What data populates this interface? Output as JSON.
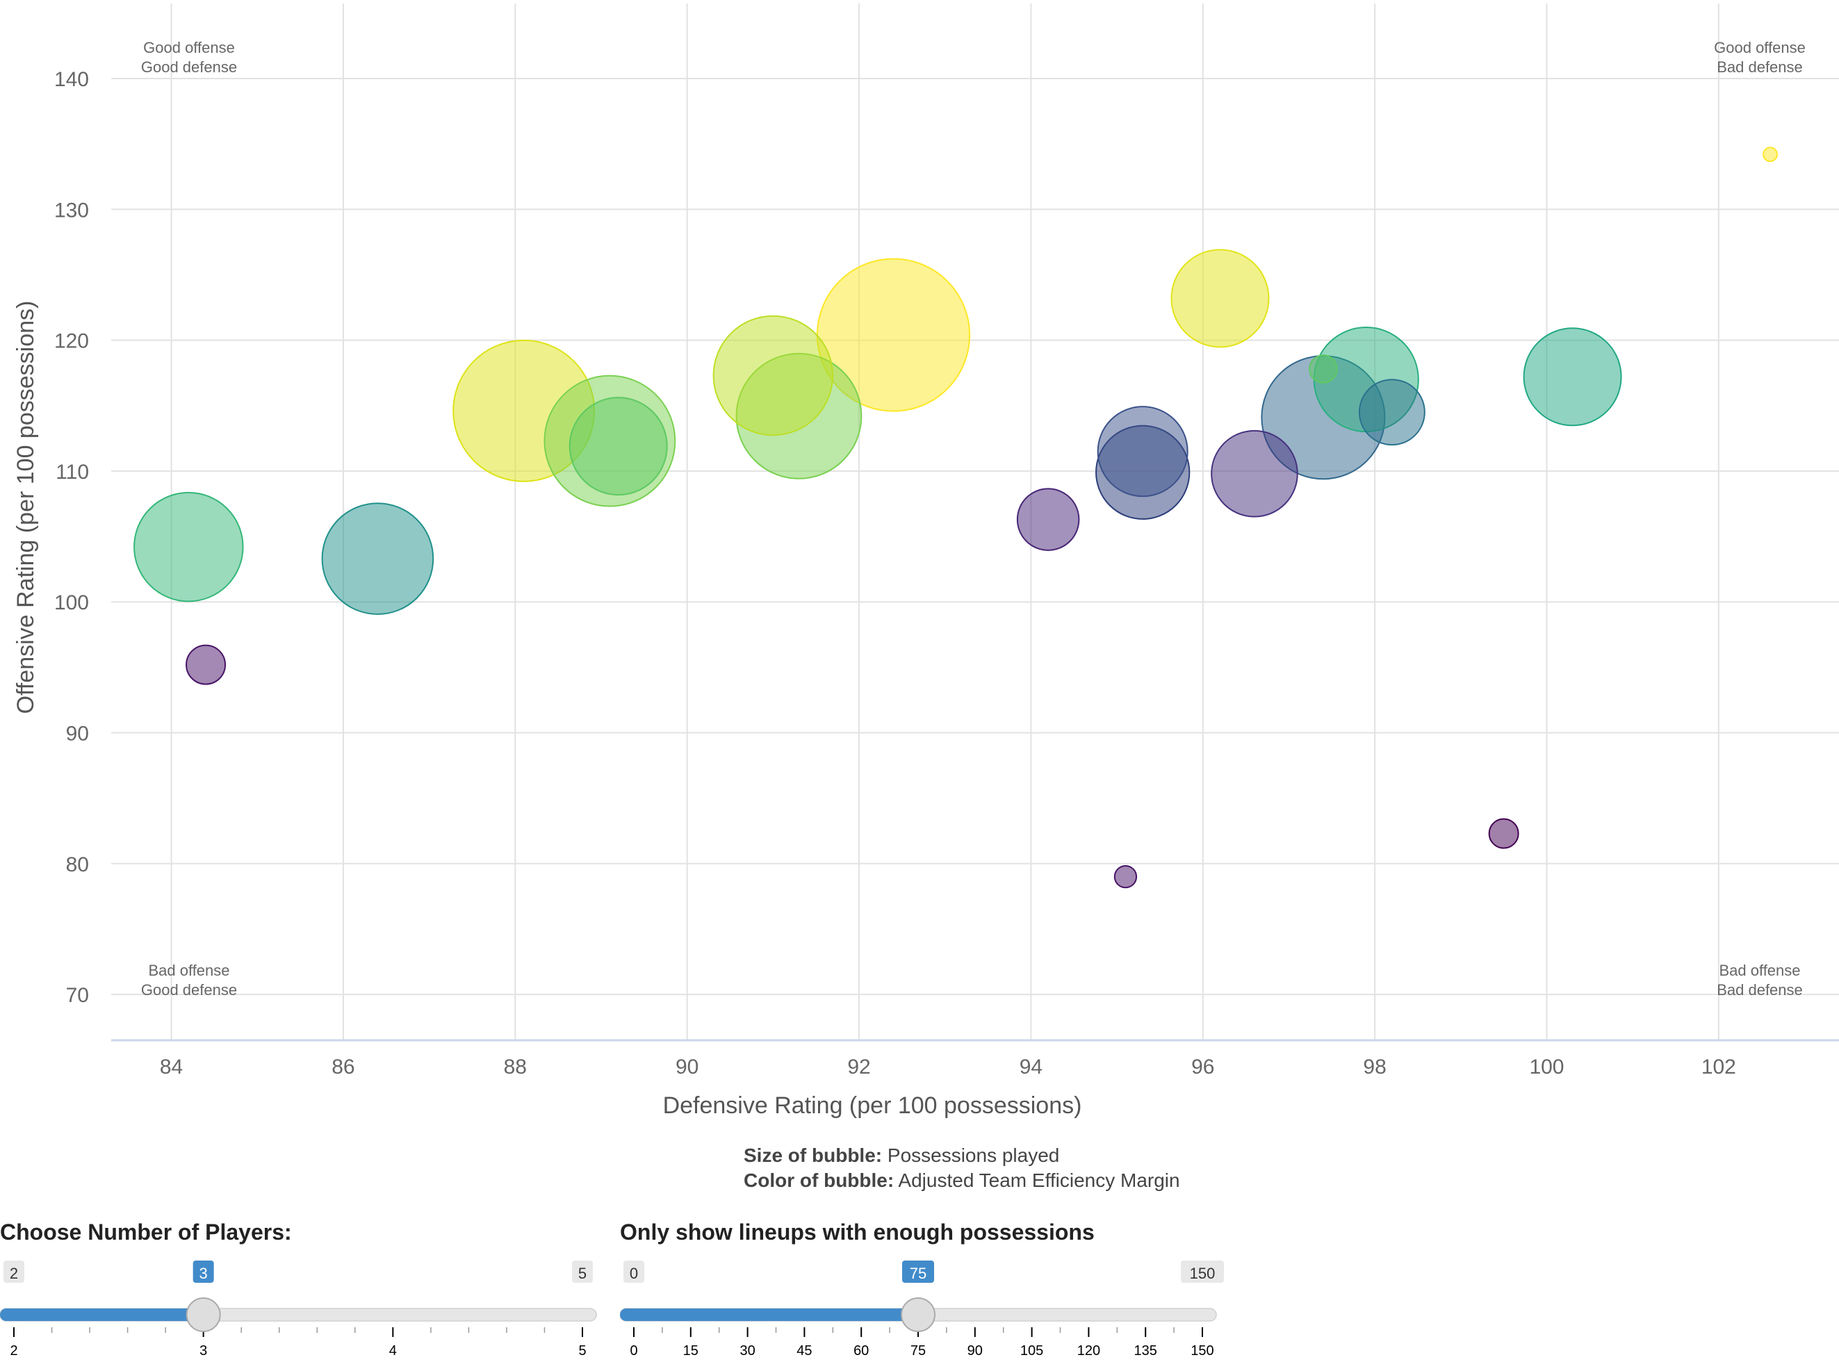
{
  "chart_data": {
    "type": "scatter",
    "xlabel": "Defensive Rating (per 100 possessions)",
    "ylabel": "Offensive Rating (per 100 possessions)",
    "xlim": [
      83.3,
      103.4
    ],
    "ylim": [
      66.5,
      146
    ],
    "xticks": [
      84,
      86,
      88,
      90,
      92,
      94,
      96,
      98,
      100,
      102
    ],
    "yticks": [
      70,
      80,
      90,
      100,
      110,
      120,
      130,
      140
    ],
    "grid": true,
    "quadrant_labels": {
      "top_left": [
        "Good offense",
        "Good defense"
      ],
      "top_right": [
        "Good offense",
        "Bad defense"
      ],
      "bottom_left": [
        "Bad offense",
        "Good defense"
      ],
      "bottom_right": [
        "Bad offense",
        "Bad defense"
      ]
    },
    "points": [
      {
        "x": 92.4,
        "y": 120.4,
        "possessions": 245,
        "color": "#fde725"
      },
      {
        "x": 88.1,
        "y": 114.6,
        "possessions": 210,
        "color": "#dde318"
      },
      {
        "x": 91.0,
        "y": 117.3,
        "possessions": 150,
        "color": "#bddf26"
      },
      {
        "x": 91.3,
        "y": 114.2,
        "possessions": 165,
        "color": "#7ad151"
      },
      {
        "x": 89.1,
        "y": 112.3,
        "possessions": 180,
        "color": "#7ad151"
      },
      {
        "x": 89.2,
        "y": 111.9,
        "possessions": 100,
        "color": "#5ec962"
      },
      {
        "x": 96.2,
        "y": 123.2,
        "possessions": 100,
        "color": "#e2e418"
      },
      {
        "x": 84.2,
        "y": 104.2,
        "possessions": 125,
        "color": "#35b779"
      },
      {
        "x": 86.4,
        "y": 103.3,
        "possessions": 130,
        "color": "#21918c"
      },
      {
        "x": 97.9,
        "y": 117.0,
        "possessions": 115,
        "color": "#29af7f"
      },
      {
        "x": 97.4,
        "y": 114.1,
        "possessions": 160,
        "color": "#31688e"
      },
      {
        "x": 98.2,
        "y": 114.5,
        "possessions": 45,
        "color": "#2c728e"
      },
      {
        "x": 97.4,
        "y": 117.8,
        "possessions": 8,
        "color": "#5ec962"
      },
      {
        "x": 100.3,
        "y": 117.2,
        "possessions": 100,
        "color": "#22a884"
      },
      {
        "x": 95.3,
        "y": 111.5,
        "possessions": 85,
        "color": "#3b528b"
      },
      {
        "x": 95.3,
        "y": 109.9,
        "possessions": 92,
        "color": "#2c3e7a"
      },
      {
        "x": 96.6,
        "y": 109.8,
        "possessions": 78,
        "color": "#46327e"
      },
      {
        "x": 94.2,
        "y": 106.3,
        "possessions": 40,
        "color": "#482677"
      },
      {
        "x": 84.4,
        "y": 95.2,
        "possessions": 16,
        "color": "#481467"
      },
      {
        "x": 95.1,
        "y": 79.0,
        "possessions": 5,
        "color": "#481467"
      },
      {
        "x": 99.5,
        "y": 82.3,
        "possessions": 9,
        "color": "#440154"
      },
      {
        "x": 102.6,
        "y": 134.2,
        "possessions": 2,
        "color": "#fde725"
      }
    ]
  },
  "legend_note": {
    "size_label": "Size of bubble:",
    "size_value": "Possessions played",
    "color_label": "Color of bubble:",
    "color_value": "Adjusted Team Efficiency Margin"
  },
  "controls": {
    "players_slider": {
      "title": "Choose Number of Players:",
      "min": 2,
      "max": 5,
      "value": 3,
      "min_label": "2",
      "max_label": "5",
      "value_label": "3",
      "ticks": [
        "2",
        "3",
        "4",
        "5"
      ]
    },
    "possessions_slider": {
      "title": "Only show lineups with enough possessions",
      "min": 0,
      "max": 150,
      "value": 75,
      "min_label": "0",
      "max_label": "150",
      "value_label": "75",
      "ticks": [
        "0",
        "15",
        "30",
        "45",
        "60",
        "75",
        "90",
        "105",
        "120",
        "135",
        "150"
      ]
    }
  },
  "colors": {
    "slider_fill": "#428bca",
    "grid": "#e2e2e2",
    "axis_line": "#ccd6eb"
  }
}
